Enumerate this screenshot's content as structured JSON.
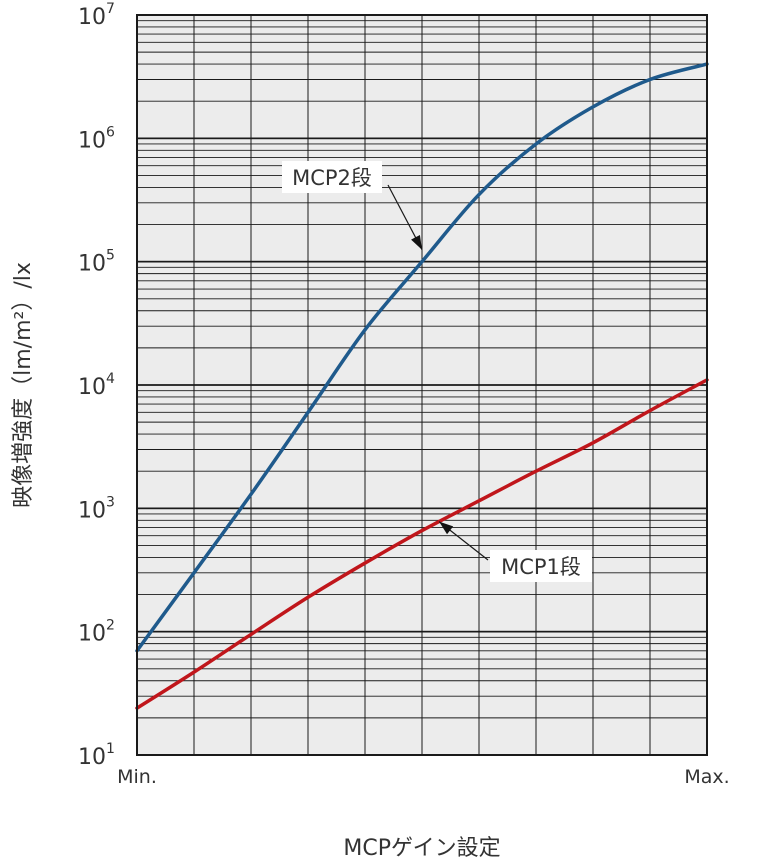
{
  "chart_data": {
    "type": "line",
    "xlabel": "MCPゲイン設定",
    "ylabel": "映像増強度（lm/m²）/lx",
    "xlim": [
      0,
      1
    ],
    "x_tick_labels": {
      "min": "Min.",
      "max": "Max."
    },
    "y_scale": "log",
    "ylim": [
      10,
      10000000
    ],
    "y_ticks": [
      {
        "base": "10",
        "exp": "1"
      },
      {
        "base": "10",
        "exp": "2"
      },
      {
        "base": "10",
        "exp": "3"
      },
      {
        "base": "10",
        "exp": "4"
      },
      {
        "base": "10",
        "exp": "5"
      },
      {
        "base": "10",
        "exp": "6"
      },
      {
        "base": "10",
        "exp": "7"
      }
    ],
    "grid": true,
    "series": [
      {
        "name": "MCP2段",
        "color": "#1f5a8c",
        "x": [
          0,
          0.1,
          0.2,
          0.3,
          0.4,
          0.5,
          0.6,
          0.7,
          0.8,
          0.9,
          1.0
        ],
        "y": [
          70,
          300,
          1300,
          6000,
          28000,
          100000,
          350000,
          900000,
          1800000,
          3000000,
          4000000
        ]
      },
      {
        "name": "MCP1段",
        "color": "#c0161b",
        "x": [
          0,
          0.1,
          0.2,
          0.3,
          0.4,
          0.5,
          0.6,
          0.7,
          0.8,
          0.9,
          1.0
        ],
        "y": [
          24,
          47,
          95,
          190,
          360,
          660,
          1150,
          2000,
          3400,
          6200,
          11000
        ]
      }
    ],
    "annotations": [
      {
        "text": "MCP2段",
        "series": "MCP2段",
        "point_x": 0.5,
        "point_y": 125000
      },
      {
        "text": "MCP1段",
        "series": "MCP1段",
        "point_x": 0.53,
        "point_y": 780
      }
    ]
  }
}
